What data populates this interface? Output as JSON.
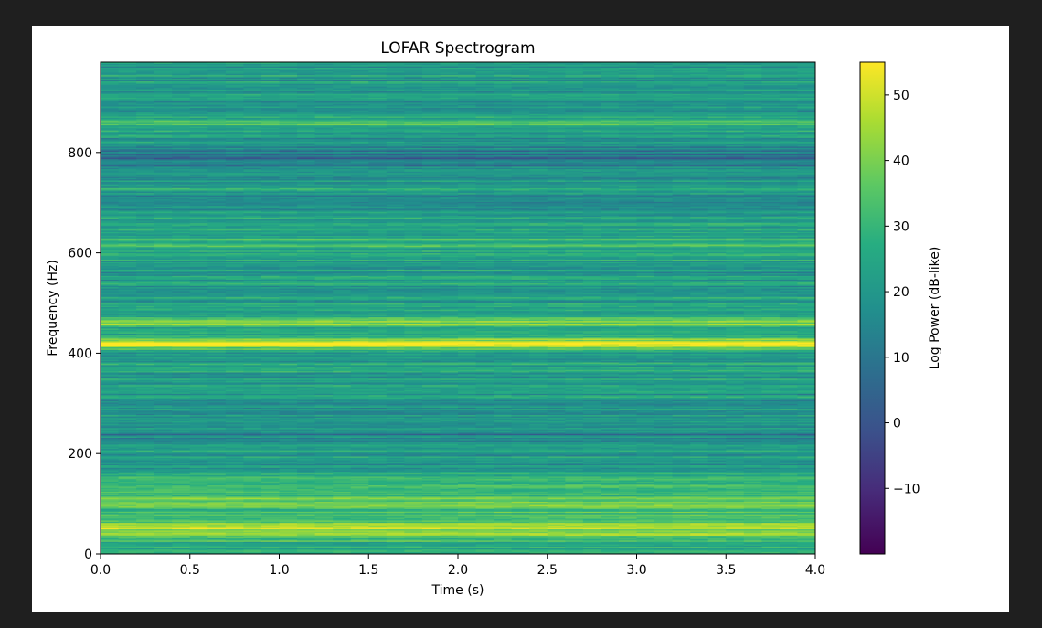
{
  "chart_data": {
    "type": "heatmap",
    "title": "LOFAR Spectrogram",
    "xlabel": "Time (s)",
    "ylabel": "Frequency (Hz)",
    "xlim": [
      0,
      4.0
    ],
    "ylim": [
      0,
      980
    ],
    "xticks": [
      "0.0",
      "0.5",
      "1.0",
      "1.5",
      "2.0",
      "2.5",
      "3.0",
      "3.5",
      "4.0"
    ],
    "yticks": [
      "0",
      "200",
      "400",
      "600",
      "800"
    ],
    "colormap": "viridis",
    "colorbar": {
      "label": "Log Power (dB-like)",
      "range": [
        -20,
        55
      ],
      "ticks": [
        "−10",
        "0",
        "10",
        "20",
        "30",
        "40",
        "50"
      ]
    },
    "background_level": 22,
    "bands": [
      {
        "freq": 420,
        "width": 12,
        "level": 50
      },
      {
        "freq": 460,
        "width": 10,
        "level": 38
      },
      {
        "freq": 860,
        "width": 8,
        "level": 37
      },
      {
        "freq": 50,
        "width": 30,
        "level": 44
      },
      {
        "freq": 100,
        "width": 40,
        "level": 36
      },
      {
        "freq": 620,
        "width": 20,
        "level": 28
      }
    ],
    "dark_bands": [
      {
        "freq": 790,
        "width": 25,
        "level": 8
      },
      {
        "freq": 240,
        "width": 10,
        "level": 12
      },
      {
        "freq": 705,
        "width": 12,
        "level": 15
      },
      {
        "freq": 180,
        "width": 8,
        "level": 14
      }
    ]
  },
  "colors": {
    "page_background": "#1f1f1f",
    "figure_background": "#ffffff"
  }
}
